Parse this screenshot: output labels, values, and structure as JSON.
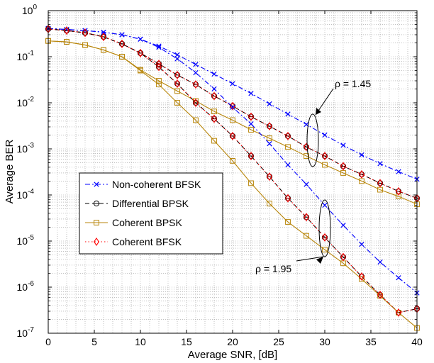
{
  "chart_data": {
    "type": "line",
    "title": "",
    "xlabel": "Average SNR, [dB]",
    "ylabel": "Average BER",
    "xlim": [
      0,
      40
    ],
    "ylim_log10": [
      -7,
      0
    ],
    "yscale": "log",
    "grid": true,
    "legend_position": "center-left",
    "x_ticks": [
      0,
      5,
      10,
      15,
      20,
      25,
      30,
      35,
      40
    ],
    "y_tick_labels": [
      {
        "exp": "0",
        "value": 1
      },
      {
        "exp": "-1",
        "value": 0.1
      },
      {
        "exp": "-2",
        "value": 0.01
      },
      {
        "exp": "-3",
        "value": 0.001
      },
      {
        "exp": "-4",
        "value": 0.0001
      },
      {
        "exp": "-5",
        "value": 1e-05
      },
      {
        "exp": "-6",
        "value": 1e-06
      },
      {
        "exp": "-7",
        "value": 1e-07
      }
    ],
    "x": [
      0,
      2,
      4,
      6,
      8,
      10,
      12,
      14,
      16,
      18,
      20,
      22,
      24,
      26,
      28,
      30,
      32,
      34,
      36,
      38,
      40
    ],
    "series": [
      {
        "name": "Non-coherent BFSK",
        "group": "ρ = 1.45",
        "color": "#0000ff",
        "marker": "x",
        "dash": "dashdot",
        "values": [
          0.41,
          0.39,
          0.37,
          0.34,
          0.3,
          0.24,
          0.17,
          0.11,
          0.068,
          0.042,
          0.026,
          0.016,
          0.0095,
          0.0057,
          0.0034,
          0.002,
          0.0012,
          0.00074,
          0.00048,
          0.00032,
          0.00022
        ]
      },
      {
        "name": "Differential BPSK",
        "group": "ρ = 1.45",
        "color": "#000000",
        "marker": "o",
        "dash": "dashed",
        "values": [
          0.4,
          0.37,
          0.33,
          0.27,
          0.19,
          0.12,
          0.07,
          0.04,
          0.025,
          0.014,
          0.0085,
          0.005,
          0.0031,
          0.0019,
          0.0011,
          0.0007,
          0.00042,
          0.00028,
          0.00018,
          0.00012,
          8.5e-05
        ]
      },
      {
        "name": "Coherent BPSK",
        "group": "ρ = 1.45",
        "color": "#b8860b",
        "marker": "s",
        "dash": "solid",
        "values": [
          0.22,
          0.21,
          0.18,
          0.14,
          0.1,
          0.052,
          0.03,
          0.018,
          0.011,
          0.0065,
          0.0042,
          0.0026,
          0.0017,
          0.0011,
          0.0007,
          0.00045,
          0.0003,
          0.0002,
          0.00013,
          9.3e-05,
          6.3e-05
        ]
      },
      {
        "name": "Coherent BFSK",
        "group": "ρ = 1.45",
        "color": "#ff0000",
        "marker": "diamond",
        "dash": "dotted",
        "values": [
          0.4,
          0.37,
          0.33,
          0.27,
          0.19,
          0.12,
          0.07,
          0.04,
          0.025,
          0.014,
          0.0085,
          0.005,
          0.0031,
          0.0019,
          0.0011,
          0.0007,
          0.00042,
          0.00028,
          0.00018,
          0.00012,
          8.5e-05
        ]
      },
      {
        "name": "Non-coherent BFSK",
        "group": "ρ = 1.95",
        "color": "#0000ff",
        "marker": "x",
        "dash": "dashdot",
        "values": [
          0.41,
          0.39,
          0.37,
          0.34,
          0.3,
          0.24,
          0.16,
          0.09,
          0.045,
          0.02,
          0.008,
          0.0035,
          0.0013,
          0.00045,
          0.00017,
          6e-05,
          2.2e-05,
          8.5e-06,
          3.5e-06,
          1.6e-06,
          7.5e-07
        ]
      },
      {
        "name": "Differential BPSK",
        "group": "ρ = 1.95",
        "color": "#000000",
        "marker": "o",
        "dash": "dashed",
        "values": [
          0.4,
          0.37,
          0.33,
          0.27,
          0.19,
          0.12,
          0.06,
          0.026,
          0.01,
          0.0045,
          0.0019,
          0.0007,
          0.00025,
          8.5e-05,
          3.3e-05,
          1.2e-05,
          4.5e-06,
          1.7e-06,
          6.8e-07,
          2.8e-07,
          3.4e-07
        ]
      },
      {
        "name": "Coherent BPSK",
        "group": "ρ = 1.95",
        "color": "#b8860b",
        "marker": "s",
        "dash": "solid",
        "values": [
          0.22,
          0.21,
          0.18,
          0.14,
          0.1,
          0.05,
          0.025,
          0.01,
          0.0042,
          0.0015,
          0.00055,
          0.00018,
          6.5e-05,
          2.6e-05,
          1.3e-05,
          6.5e-06,
          3.3e-06,
          1.5e-06,
          6.5e-07,
          2.8e-07,
          1.3e-07
        ]
      },
      {
        "name": "Coherent BFSK",
        "group": "ρ = 1.95",
        "color": "#ff0000",
        "marker": "diamond",
        "dash": "dotted",
        "values": [
          0.4,
          0.37,
          0.33,
          0.27,
          0.19,
          0.12,
          0.06,
          0.026,
          0.01,
          0.0045,
          0.0019,
          0.0007,
          0.00025,
          8.5e-05,
          3.3e-05,
          1.2e-05,
          4.5e-06,
          1.7e-06,
          6.8e-07,
          2.8e-07,
          3.4e-07
        ]
      }
    ],
    "legend": [
      {
        "label": "Non-coherent BFSK",
        "color": "#0000ff",
        "marker": "x",
        "dash": "dashdot"
      },
      {
        "label": "Differential BPSK",
        "color": "#000000",
        "marker": "o",
        "dash": "dashed"
      },
      {
        "label": "Coherent BPSK",
        "color": "#b8860b",
        "marker": "s",
        "dash": "solid"
      },
      {
        "label": "Coherent BFSK",
        "color": "#ff0000",
        "marker": "diamond",
        "dash": "dotted"
      }
    ],
    "annotations": [
      {
        "text": "ρ = 1.45",
        "points_to_x": 28,
        "points_to_y": 0.001
      },
      {
        "text": "ρ = 1.95",
        "points_to_x": 30,
        "points_to_y": 1e-05
      }
    ]
  }
}
